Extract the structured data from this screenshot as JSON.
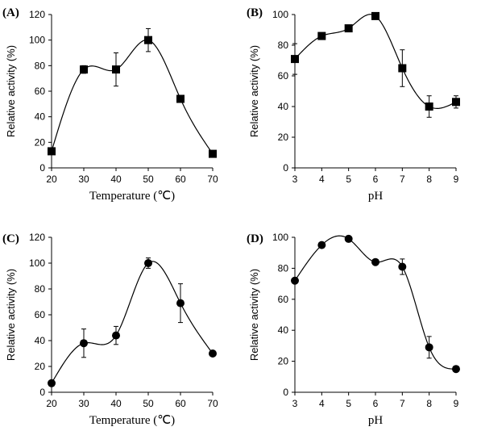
{
  "chart_data": [
    {
      "panel_label": "(A)",
      "type": "line",
      "marker": "square",
      "xlabel": "Temperature (℃)",
      "ylabel": "Relative activity (%)",
      "xlim": [
        20,
        70
      ],
      "ylim": [
        0,
        120
      ],
      "xticks": [
        20,
        30,
        40,
        50,
        60,
        70
      ],
      "yticks": [
        0,
        20,
        40,
        60,
        80,
        100,
        120
      ],
      "x": [
        20,
        30,
        40,
        50,
        60,
        70
      ],
      "y": [
        13,
        77,
        77,
        100,
        54,
        11
      ],
      "error": [
        0,
        3,
        13,
        9,
        0,
        0
      ],
      "grid": false
    },
    {
      "panel_label": "(B)",
      "type": "line",
      "marker": "square",
      "xlabel": "pH",
      "ylabel": "Relative activity (%)",
      "xlim": [
        3,
        9
      ],
      "ylim": [
        0,
        100
      ],
      "xticks": [
        3,
        4,
        5,
        6,
        7,
        8,
        9
      ],
      "yticks": [
        0,
        20,
        40,
        60,
        80,
        100
      ],
      "x": [
        3,
        4,
        5,
        6,
        7,
        8,
        9
      ],
      "y": [
        71,
        86,
        91,
        99,
        65,
        40,
        43
      ],
      "error": [
        10,
        0,
        0,
        0,
        12,
        7,
        4
      ],
      "grid": false
    },
    {
      "panel_label": "(C)",
      "type": "line",
      "marker": "circle",
      "xlabel": "Temperature (℃)",
      "ylabel": "Relative activity (%)",
      "xlim": [
        20,
        70
      ],
      "ylim": [
        0,
        120
      ],
      "xticks": [
        20,
        30,
        40,
        50,
        60,
        70
      ],
      "yticks": [
        0,
        20,
        40,
        60,
        80,
        100,
        120
      ],
      "x": [
        20,
        30,
        40,
        50,
        60,
        70
      ],
      "y": [
        7,
        38,
        44,
        100,
        69,
        30
      ],
      "error": [
        0,
        11,
        7,
        4,
        15,
        0
      ],
      "grid": false
    },
    {
      "panel_label": "(D)",
      "type": "line",
      "marker": "circle",
      "xlabel": "pH",
      "ylabel": "Relative activity (%)",
      "xlim": [
        3,
        9
      ],
      "ylim": [
        0,
        100
      ],
      "xticks": [
        3,
        4,
        5,
        6,
        7,
        8,
        9
      ],
      "yticks": [
        0,
        20,
        40,
        60,
        80,
        100
      ],
      "x": [
        3,
        4,
        5,
        6,
        7,
        8,
        9
      ],
      "y": [
        72,
        95,
        99,
        84,
        81,
        29,
        15
      ],
      "error": [
        0,
        0,
        0,
        0,
        5,
        7,
        0
      ],
      "grid": false
    }
  ],
  "colors": {
    "ink": "#000000",
    "background": "#ffffff"
  }
}
